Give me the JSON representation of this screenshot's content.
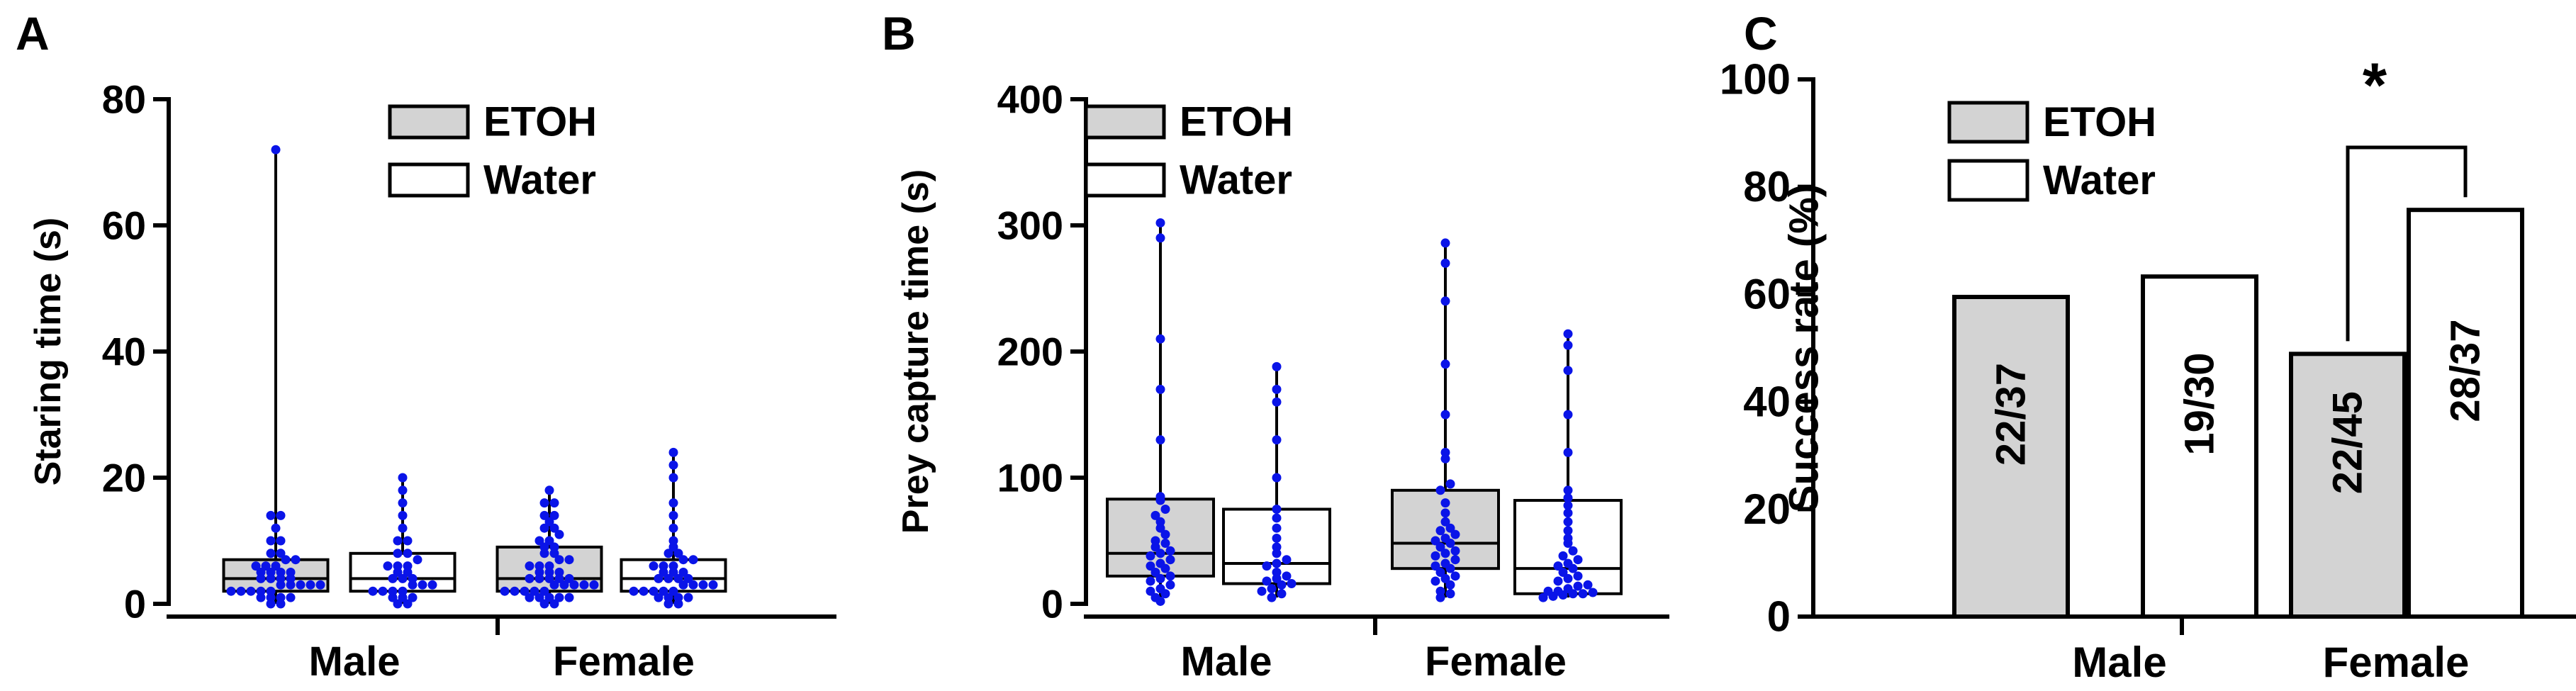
{
  "colors": {
    "etoh": "#d3d3d3",
    "water": "#ffffff",
    "dots": "#0a14e8",
    "axis": "#000000"
  },
  "chart_data": [
    {
      "panel_label": "A",
      "type": "box",
      "ylabel": "Staring time (s)",
      "ylim": [
        0,
        80
      ],
      "yticks": [
        "0",
        "20",
        "40",
        "60",
        "80"
      ],
      "groups": [
        "Male",
        "Female"
      ],
      "legend": [
        "ETOH",
        "Water"
      ],
      "series": [
        {
          "name": "ETOH",
          "group": "Male",
          "min": 0,
          "q1": 2,
          "median": 4,
          "q3": 7,
          "max": 72,
          "points": [
            0,
            0,
            1,
            1,
            1,
            1,
            2,
            2,
            2,
            2,
            2,
            3,
            3,
            3,
            3,
            3,
            4,
            4,
            4,
            4,
            5,
            5,
            5,
            5,
            6,
            6,
            6,
            7,
            7,
            8,
            8,
            10,
            10,
            12,
            14,
            14,
            72
          ]
        },
        {
          "name": "Water",
          "group": "Male",
          "min": 0,
          "q1": 2,
          "median": 4,
          "q3": 8,
          "max": 20,
          "points": [
            0,
            0,
            1,
            1,
            1,
            2,
            2,
            2,
            2,
            3,
            3,
            3,
            4,
            4,
            4,
            5,
            5,
            6,
            6,
            6,
            7,
            8,
            8,
            10,
            10,
            12,
            14,
            16,
            18,
            20
          ]
        },
        {
          "name": "ETOH",
          "group": "Female",
          "min": 0,
          "q1": 2,
          "median": 4,
          "q3": 9,
          "max": 18,
          "points": [
            0,
            0,
            1,
            1,
            1,
            1,
            1,
            2,
            2,
            2,
            2,
            2,
            3,
            3,
            3,
            3,
            3,
            4,
            4,
            4,
            4,
            4,
            5,
            5,
            5,
            6,
            6,
            6,
            7,
            7,
            8,
            8,
            9,
            9,
            10,
            10,
            11,
            12,
            12,
            13,
            14,
            14,
            16,
            16,
            18
          ]
        },
        {
          "name": "Water",
          "group": "Female",
          "min": 0,
          "q1": 2,
          "median": 4,
          "q3": 7,
          "max": 24,
          "points": [
            0,
            0,
            1,
            1,
            1,
            1,
            2,
            2,
            2,
            2,
            2,
            3,
            3,
            3,
            3,
            4,
            4,
            4,
            4,
            5,
            5,
            5,
            6,
            6,
            6,
            7,
            7,
            8,
            8,
            9,
            10,
            12,
            14,
            16,
            20,
            22,
            24
          ]
        }
      ]
    },
    {
      "panel_label": "B",
      "type": "box",
      "ylabel": "Prey capture time (s)",
      "ylim": [
        0,
        400
      ],
      "yticks": [
        "0",
        "100",
        "200",
        "300",
        "400"
      ],
      "groups": [
        "Male",
        "Female"
      ],
      "legend": [
        "ETOH",
        "Water"
      ],
      "series": [
        {
          "name": "ETOH",
          "group": "Male",
          "min": 2,
          "q1": 22,
          "median": 40,
          "q3": 83,
          "max": 302,
          "points": [
            2,
            5,
            8,
            10,
            12,
            15,
            18,
            20,
            22,
            25,
            28,
            30,
            32,
            35,
            38,
            40,
            42,
            45,
            48,
            50,
            55,
            60,
            65,
            70,
            75,
            82,
            85,
            130,
            170,
            210,
            290,
            302
          ]
        },
        {
          "name": "Water",
          "group": "Male",
          "min": 5,
          "q1": 16,
          "median": 32,
          "q3": 75,
          "max": 188,
          "points": [
            5,
            8,
            10,
            12,
            15,
            16,
            18,
            20,
            22,
            25,
            30,
            32,
            35,
            40,
            45,
            52,
            60,
            68,
            75,
            100,
            130,
            160,
            170,
            188
          ]
        },
        {
          "name": "ETOH",
          "group": "Female",
          "min": 5,
          "q1": 28,
          "median": 48,
          "q3": 90,
          "max": 286,
          "points": [
            5,
            8,
            10,
            15,
            18,
            20,
            22,
            25,
            28,
            30,
            32,
            35,
            38,
            40,
            42,
            45,
            48,
            50,
            52,
            55,
            58,
            60,
            65,
            72,
            80,
            90,
            95,
            115,
            120,
            150,
            190,
            240,
            270,
            286
          ]
        },
        {
          "name": "Water",
          "group": "Female",
          "min": 5,
          "q1": 8,
          "median": 28,
          "q3": 82,
          "max": 214,
          "points": [
            5,
            6,
            7,
            8,
            8,
            9,
            10,
            10,
            12,
            14,
            15,
            18,
            20,
            22,
            25,
            28,
            30,
            32,
            35,
            38,
            42,
            48,
            52,
            58,
            65,
            72,
            78,
            84,
            90,
            120,
            150,
            185,
            205,
            214
          ]
        }
      ]
    },
    {
      "panel_label": "C",
      "type": "bar",
      "ylabel": "Success rate (%)",
      "ylim": [
        0,
        100
      ],
      "yticks": [
        "0",
        "20",
        "40",
        "60",
        "80",
        "100"
      ],
      "groups": [
        "Male",
        "Female"
      ],
      "legend": [
        "ETOH",
        "Water"
      ],
      "series": [
        {
          "name": "ETOH",
          "group": "Male",
          "value": 59.5,
          "label": "22/37"
        },
        {
          "name": "Water",
          "group": "Male",
          "value": 63.3,
          "label": "19/30"
        },
        {
          "name": "ETOH",
          "group": "Female",
          "value": 48.9,
          "label": "22/45"
        },
        {
          "name": "Water",
          "group": "Female",
          "value": 75.7,
          "label": "28/37"
        }
      ],
      "significance": "*"
    }
  ]
}
